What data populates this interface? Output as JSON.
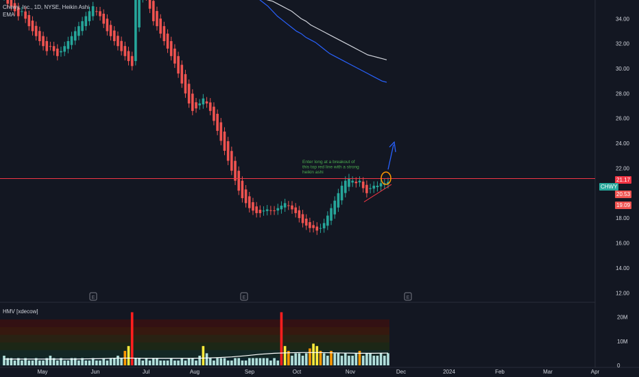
{
  "header": {
    "symbol_line": "Chewy, Inc., 1D, NYSE, Heikin Ashi",
    "indicator": "EMA"
  },
  "annotation": {
    "lines": [
      "Enter long at a breakout of",
      "this top red line with a strong",
      "heikin ashi"
    ]
  },
  "volume_pane": {
    "label": "HMV [xdecow]",
    "ticks": [
      "20M",
      "10M",
      "0"
    ]
  },
  "price_tags": {
    "symbol": "CHWY",
    "resistance": "21.17",
    "last": "20.53",
    "low": "19.09"
  },
  "earnings_marker": "E",
  "colors": {
    "background": "#131722",
    "bull": "#26a69a",
    "bear": "#ef5350",
    "resistance_line": "#f23645",
    "ema_fast": "#2962ff",
    "ema_slow": "#d1d4dc",
    "annotation_text": "#4caf50",
    "breakout_circle": "#ff9800",
    "arrow": "#2962ff",
    "text": "#d1d4dc"
  },
  "chart_data": {
    "type": "candlestick",
    "title": "Chewy, Inc., 1D, NYSE, Heikin Ashi",
    "y_ticks": [
      34,
      32,
      30,
      28,
      26,
      24,
      22,
      20,
      18,
      16,
      14,
      12
    ],
    "ylim": [
      11.3,
      35.5
    ],
    "x_labels": [
      "May",
      "Jun",
      "Jul",
      "Aug",
      "Sep",
      "Oct",
      "Nov",
      "Dec",
      "2024",
      "Feb",
      "Mar",
      "Apr"
    ],
    "resistance_level": 21.17,
    "last_price": 20.53,
    "low_tag": 19.09,
    "closes": [
      35.8,
      35.2,
      35.0,
      34.6,
      34.2,
      34.6,
      34.0,
      33.4,
      33.0,
      32.6,
      32.2,
      31.8,
      31.4,
      31.8,
      31.4,
      31.0,
      31.4,
      31.8,
      32.2,
      32.6,
      33.0,
      33.4,
      33.8,
      34.2,
      34.6,
      35.0,
      34.6,
      34.2,
      33.6,
      33.0,
      32.6,
      32.2,
      31.8,
      31.4,
      31.0,
      30.6,
      30.2,
      36.0,
      38.0,
      37.0,
      35.8,
      34.8,
      33.8,
      33.4,
      32.8,
      32.2,
      31.6,
      31.0,
      30.4,
      29.6,
      28.8,
      28.0,
      27.2,
      26.6,
      26.8,
      27.2,
      27.6,
      27.2,
      26.6,
      25.8,
      25.0,
      24.2,
      23.4,
      22.6,
      21.8,
      21.0,
      20.2,
      19.6,
      19.2,
      18.8,
      18.6,
      18.4,
      18.4,
      18.6,
      18.7,
      18.6,
      18.6,
      18.8,
      19.0,
      19.2,
      19.0,
      18.7,
      18.4,
      18.0,
      17.6,
      17.4,
      17.2,
      17.2,
      17.0,
      17.2,
      17.6,
      18.2,
      18.8,
      19.4,
      20.0,
      20.6,
      21.0,
      21.2,
      21.0,
      20.8,
      21.0,
      20.4,
      20.0,
      20.4,
      20.6,
      20.6,
      20.8,
      20.8,
      20.9
    ],
    "ema_fast": [
      35.8,
      35.6,
      35.3,
      35.0,
      34.6,
      34.2,
      33.9,
      33.6,
      33.3,
      33.0,
      32.8,
      32.5,
      32.3,
      32.1,
      31.8,
      31.5,
      31.2,
      31.0,
      30.8,
      30.6,
      30.4,
      30.2,
      30.0,
      29.8,
      29.6,
      29.4,
      29.2,
      29.0,
      28.9
    ],
    "ema_slow": [
      35.8,
      35.7,
      35.6,
      35.5,
      35.4,
      35.2,
      35.0,
      34.8,
      34.6,
      34.3,
      34.0,
      33.8,
      33.5,
      33.3,
      33.1,
      32.9,
      32.7,
      32.5,
      32.3,
      32.1,
      31.9,
      31.7,
      31.5,
      31.3,
      31.1,
      31.0,
      30.9,
      30.8,
      30.7
    ],
    "volume_ylim": [
      0,
      23
    ],
    "volume": [
      4,
      3,
      3,
      2,
      3,
      2,
      3,
      2,
      2,
      3,
      2,
      2,
      3,
      4,
      3,
      2,
      3,
      2,
      2,
      3,
      3,
      2,
      3,
      2,
      2,
      3,
      2,
      2,
      3,
      2,
      3,
      3,
      4,
      3,
      6,
      8,
      22,
      3,
      3,
      2,
      3,
      2,
      3,
      3,
      2,
      2,
      2,
      3,
      2,
      2,
      3,
      2,
      3,
      3,
      2,
      4,
      8,
      5,
      3,
      2,
      3,
      3,
      3,
      2,
      2,
      3,
      3,
      2,
      2,
      3,
      3,
      3,
      3,
      3,
      3,
      2,
      3,
      2,
      22,
      8,
      6,
      4,
      5,
      5,
      4,
      5,
      7,
      9,
      8,
      6,
      5,
      4,
      6,
      5,
      5,
      4,
      5,
      4,
      4,
      5,
      6,
      4,
      5,
      5,
      4,
      4,
      5,
      4,
      5
    ],
    "volume_avg": [
      2.6,
      2.6,
      2.6,
      2.6,
      2.6,
      2.6,
      2.7,
      2.8,
      3.0,
      3.0,
      2.9,
      2.9,
      2.9,
      2.9,
      3.0,
      3.2,
      3.5,
      4.0,
      4.6,
      5.0,
      5.2,
      5.3,
      5.3,
      5.2,
      5.1,
      5.0,
      5.0,
      5.1
    ],
    "heat_band_top": 19.0
  }
}
